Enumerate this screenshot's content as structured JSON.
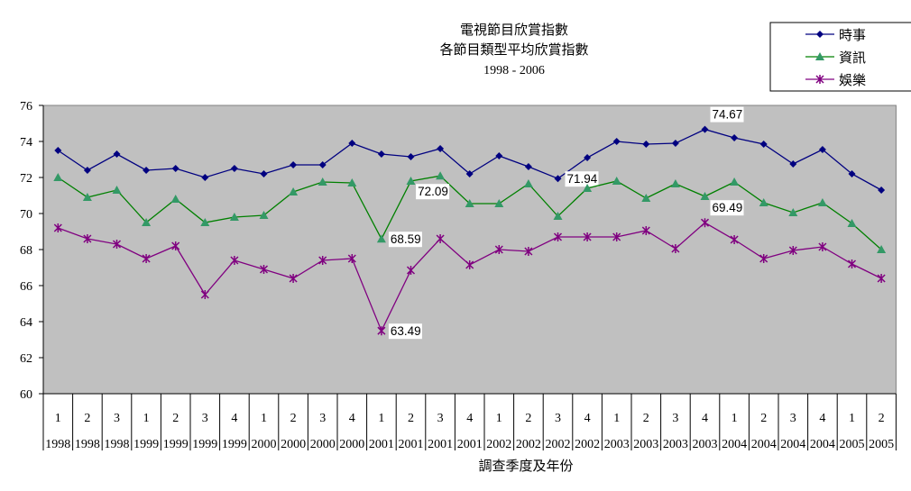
{
  "chart_data": {
    "type": "line",
    "title": [
      "電視節目欣賞指數",
      "各節目類型平均欣賞指數",
      "1998 - 2006"
    ],
    "xlabel": "調查季度及年份",
    "ylabel": "",
    "ylim": [
      60,
      76
    ],
    "yticks": [
      60,
      62,
      64,
      66,
      68,
      70,
      72,
      74,
      76
    ],
    "grid": false,
    "legend": "top-right",
    "categories": [
      {
        "q": "1",
        "y": "1998"
      },
      {
        "q": "2",
        "y": "1998"
      },
      {
        "q": "3",
        "y": "1998"
      },
      {
        "q": "1",
        "y": "1999"
      },
      {
        "q": "2",
        "y": "1999"
      },
      {
        "q": "3",
        "y": "1999"
      },
      {
        "q": "4",
        "y": "1999"
      },
      {
        "q": "1",
        "y": "2000"
      },
      {
        "q": "2",
        "y": "2000"
      },
      {
        "q": "3",
        "y": "2000"
      },
      {
        "q": "4",
        "y": "2000"
      },
      {
        "q": "1",
        "y": "2001"
      },
      {
        "q": "2",
        "y": "2001"
      },
      {
        "q": "3",
        "y": "2001"
      },
      {
        "q": "4",
        "y": "2001"
      },
      {
        "q": "1",
        "y": "2002"
      },
      {
        "q": "2",
        "y": "2002"
      },
      {
        "q": "3",
        "y": "2002"
      },
      {
        "q": "4",
        "y": "2002"
      },
      {
        "q": "1",
        "y": "2003"
      },
      {
        "q": "2",
        "y": "2003"
      },
      {
        "q": "3",
        "y": "2003"
      },
      {
        "q": "4",
        "y": "2003"
      },
      {
        "q": "1",
        "y": "2004"
      },
      {
        "q": "2",
        "y": "2004"
      },
      {
        "q": "3",
        "y": "2004"
      },
      {
        "q": "4",
        "y": "2004"
      },
      {
        "q": "1",
        "y": "2005"
      },
      {
        "q": "2",
        "y": "2005"
      }
    ],
    "series": [
      {
        "name": "時事",
        "color": "#000080",
        "marker": "diamond",
        "values": [
          73.5,
          72.4,
          73.3,
          72.4,
          72.5,
          72.0,
          72.5,
          72.2,
          72.7,
          72.7,
          73.9,
          73.3,
          73.15,
          73.6,
          72.2,
          73.2,
          72.6,
          71.94,
          73.1,
          74.0,
          73.85,
          73.9,
          74.67,
          74.2,
          73.85,
          72.75,
          73.55,
          72.2,
          71.3
        ],
        "labels": {
          "17": "71.94",
          "22": "74.67"
        }
      },
      {
        "name": "資訊",
        "color": "#008000",
        "markerColor": "#339966",
        "marker": "triangle",
        "values": [
          72.0,
          70.9,
          71.3,
          69.5,
          70.8,
          69.5,
          69.8,
          69.9,
          71.2,
          71.75,
          71.7,
          68.59,
          71.8,
          72.09,
          70.55,
          70.55,
          71.65,
          69.85,
          71.4,
          71.8,
          70.85,
          71.65,
          70.95,
          71.75,
          70.6,
          70.05,
          70.6,
          69.45,
          68.0
        ],
        "labels": {
          "11": "68.59",
          "13": "72.09"
        }
      },
      {
        "name": "娛樂",
        "color": "#800080",
        "marker": "star",
        "values": [
          69.2,
          68.6,
          68.3,
          67.5,
          68.2,
          65.5,
          67.4,
          66.9,
          66.4,
          67.4,
          67.5,
          63.49,
          66.85,
          68.6,
          67.15,
          68.0,
          67.9,
          68.7,
          68.7,
          68.7,
          69.05,
          68.05,
          69.49,
          68.55,
          67.5,
          67.95,
          68.15,
          67.2,
          66.4
        ],
        "labels": {
          "11": "63.49",
          "22": "69.49"
        }
      }
    ]
  }
}
